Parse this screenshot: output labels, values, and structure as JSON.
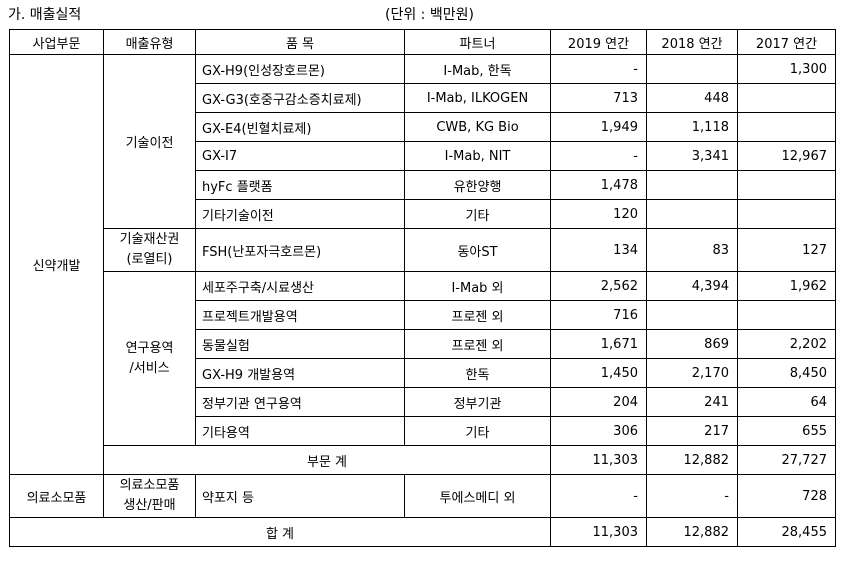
{
  "title": "가. 매출실적",
  "unit": "(단위 : 백만원)",
  "headers": [
    "사업부문",
    "매출유형",
    "품 목",
    "파트너",
    "2019 연간",
    "2018 연간",
    "2017 연간"
  ],
  "segments": {
    "drug": "신약개발",
    "tech_transfer": "기술이전",
    "royalty_line1": "기술재산권",
    "royalty_line2": "(로열티)",
    "service_line1": "연구용역",
    "service_line2": "/서비스",
    "medical": "의료소모품",
    "medical_type_line1": "의료소모품",
    "medical_type_line2": "생산/판매"
  },
  "rows": [
    {
      "item": "GX-H9(인성장호르몬)",
      "partner": "I-Mab, 한독",
      "y2019": "-",
      "y2018": "",
      "y2017": "1,300"
    },
    {
      "item": "GX-G3(호중구감소증치료제)",
      "partner": "I-Mab, ILKOGEN",
      "y2019": "713",
      "y2018": "448",
      "y2017": ""
    },
    {
      "item": "GX-E4(빈혈치료제)",
      "partner": "CWB, KG Bio",
      "y2019": "1,949",
      "y2018": "1,118",
      "y2017": ""
    },
    {
      "item": "GX-I7",
      "partner": "I-Mab, NIT",
      "y2019": "-",
      "y2018": "3,341",
      "y2017": "12,967"
    },
    {
      "item": "hyFc 플랫폼",
      "partner": "유한양행",
      "y2019": "1,478",
      "y2018": "",
      "y2017": ""
    },
    {
      "item": "기타기술이전",
      "partner": "기타",
      "y2019": "120",
      "y2018": "",
      "y2017": ""
    },
    {
      "item": "FSH(난포자극호르몬)",
      "partner": "동아ST",
      "y2019": "134",
      "y2018": "83",
      "y2017": "127"
    },
    {
      "item": "세포주구축/시료생산",
      "partner": "I-Mab 외",
      "y2019": "2,562",
      "y2018": "4,394",
      "y2017": "1,962"
    },
    {
      "item": "프로젝트개발용역",
      "partner": "프로젠 외",
      "y2019": "716",
      "y2018": "",
      "y2017": ""
    },
    {
      "item": "동물실험",
      "partner": "프로젠 외",
      "y2019": "1,671",
      "y2018": "869",
      "y2017": "2,202"
    },
    {
      "item": "GX-H9 개발용역",
      "partner": "한독",
      "y2019": "1,450",
      "y2018": "2,170",
      "y2017": "8,450"
    },
    {
      "item": "정부기관 연구용역",
      "partner": "정부기관",
      "y2019": "204",
      "y2018": "241",
      "y2017": "64"
    },
    {
      "item": "기타용역",
      "partner": "기타",
      "y2019": "306",
      "y2018": "217",
      "y2017": "655"
    }
  ],
  "subtotal": {
    "label": "부문 계",
    "y2019": "11,303",
    "y2018": "12,882",
    "y2017": "27,727"
  },
  "medical_row": {
    "item": "약포지 등",
    "partner": "투에스메디 외",
    "y2019": "-",
    "y2018": "-",
    "y2017": "728"
  },
  "total": {
    "label": "합 계",
    "y2019": "11,303",
    "y2018": "12,882",
    "y2017": "28,455"
  }
}
